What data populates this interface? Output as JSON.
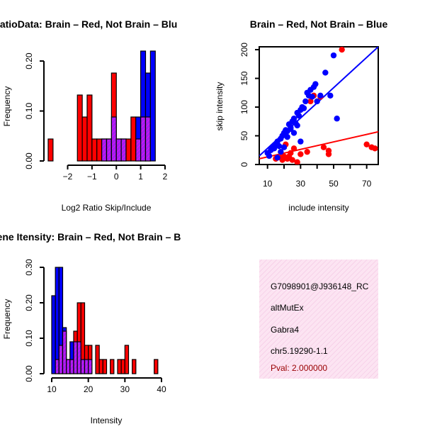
{
  "colors": {
    "brain": "#ff0000",
    "not_brain": "#0000ff",
    "overlap": "#a020f0",
    "panel_bg": "#fce4f2",
    "pval": "#990000"
  },
  "chart_data": [
    {
      "type": "bar",
      "title": "RatioData: Brain – Red, Not Brain – Blu",
      "xlabel": "Log2 Ratio Skip/Include",
      "ylabel": "Frequency",
      "xlim": [
        -2.8,
        2.0
      ],
      "ylim": [
        0,
        0.22
      ],
      "bin_width": 0.2,
      "x_ticks": [
        -2,
        -1,
        0,
        1,
        2
      ],
      "x_tick_labels": [
        "−2",
        "−1",
        "0",
        "1",
        "2"
      ],
      "y_ticks": [
        0.0,
        0.1,
        0.2
      ],
      "y_tick_labels": [
        "0.00",
        "0.10",
        "0.20"
      ],
      "bins_start": [
        -2.8,
        -2.6,
        -2.4,
        -2.2,
        -2.0,
        -1.8,
        -1.6,
        -1.4,
        -1.2,
        -1.0,
        -0.8,
        -0.6,
        -0.4,
        -0.2,
        0.0,
        0.2,
        0.4,
        0.6,
        0.8,
        1.0,
        1.2,
        1.4,
        1.6,
        1.8
      ],
      "series": [
        {
          "name": "Brain",
          "values": [
            0.044,
            0,
            0,
            0,
            0,
            0,
            0.132,
            0.088,
            0.132,
            0.044,
            0.044,
            0.044,
            0.044,
            0.176,
            0.044,
            0.044,
            0.044,
            0.088,
            0.044,
            0.088,
            0.088,
            0,
            0,
            0
          ]
        },
        {
          "name": "Not Brain",
          "values": [
            0,
            0,
            0,
            0,
            0,
            0,
            0,
            0,
            0,
            0,
            0,
            0.044,
            0.044,
            0.088,
            0.044,
            0.044,
            0,
            0,
            0.088,
            0.22,
            0.176,
            0.22,
            0,
            0
          ]
        }
      ]
    },
    {
      "type": "scatter",
      "title": "Brain – Red, Not Brain – Blue",
      "xlabel": "include intensity",
      "ylabel": "skip intensity",
      "xlim": [
        5,
        77
      ],
      "ylim": [
        0,
        205
      ],
      "x_ticks": [
        10,
        30,
        50,
        70
      ],
      "x_minor_ticks": [
        20,
        40,
        60
      ],
      "x_tick_labels": [
        "10",
        "30",
        "50",
        "70"
      ],
      "y_ticks": [
        0,
        50,
        100,
        150,
        200
      ],
      "y_tick_labels": [
        "0",
        "50",
        "100",
        "150",
        "200"
      ],
      "series": [
        {
          "name": "Brain",
          "x": [
            15,
            18,
            19,
            20,
            21,
            22,
            23,
            24,
            25,
            26,
            28,
            30,
            34,
            36,
            38,
            42,
            44,
            47,
            47,
            55,
            70,
            73,
            75
          ],
          "y": [
            10,
            12,
            8,
            14,
            35,
            10,
            14,
            20,
            8,
            28,
            4,
            18,
            22,
            110,
            120,
            118,
            30,
            24,
            18,
            200,
            35,
            30,
            28
          ]
        },
        {
          "name": "Not Brain",
          "x": [
            10,
            11,
            12,
            13,
            14,
            15,
            16,
            17,
            18,
            19,
            20,
            21,
            22,
            23,
            24,
            25,
            26,
            27,
            28,
            29,
            30,
            31,
            32,
            33,
            34,
            35,
            36,
            37,
            38,
            39,
            40,
            42,
            45,
            48,
            50,
            52,
            20,
            22,
            24,
            26,
            28,
            30,
            18,
            16
          ],
          "y": [
            20,
            15,
            25,
            30,
            28,
            35,
            40,
            32,
            45,
            50,
            55,
            60,
            58,
            70,
            65,
            75,
            80,
            72,
            90,
            85,
            95,
            100,
            98,
            110,
            125,
            120,
            130,
            118,
            135,
            140,
            110,
            120,
            160,
            120,
            190,
            80,
            30,
            48,
            62,
            55,
            68,
            40,
            22,
            12
          ]
        }
      ],
      "fit_lines": [
        {
          "name": "Brain",
          "x": [
            5,
            77
          ],
          "y": [
            10,
            57
          ]
        },
        {
          "name": "Not Brain",
          "x": [
            5,
            77
          ],
          "y": [
            15,
            205
          ]
        }
      ]
    },
    {
      "type": "bar",
      "title": "Gene Itensity: Brain – Red, Not Brain – B",
      "xlabel": "Intensity",
      "ylabel": "Frequency",
      "xlim": [
        10,
        40
      ],
      "ylim": [
        0,
        0.31
      ],
      "bin_width": 1,
      "x_ticks": [
        10,
        20,
        30,
        40
      ],
      "x_tick_labels": [
        "10",
        "20",
        "30",
        "40"
      ],
      "y_ticks": [
        0.0,
        0.1,
        0.2,
        0.3
      ],
      "y_tick_labels": [
        "0.00",
        "0.10",
        "0.20",
        "0.30"
      ],
      "bins_start": [
        10,
        11,
        12,
        13,
        14,
        15,
        16,
        17,
        18,
        19,
        20,
        21,
        22,
        23,
        24,
        25,
        26,
        27,
        28,
        29,
        30,
        31,
        32,
        33,
        34,
        35,
        36,
        37,
        38,
        39
      ],
      "series": [
        {
          "name": "Brain",
          "values": [
            0,
            0.04,
            0.08,
            0.12,
            0.04,
            0.04,
            0.12,
            0.2,
            0.2,
            0.08,
            0.08,
            0,
            0.08,
            0.04,
            0.04,
            0,
            0.04,
            0,
            0.04,
            0.04,
            0.08,
            0,
            0.04,
            0,
            0,
            0,
            0,
            0,
            0.04,
            0
          ]
        },
        {
          "name": "Not Brain",
          "values": [
            0.22,
            0.3,
            0.3,
            0.13,
            0.04,
            0.09,
            0.09,
            0.09,
            0.04,
            0.04,
            0.04,
            0,
            0,
            0,
            0,
            0,
            0,
            0,
            0,
            0,
            0,
            0,
            0,
            0,
            0,
            0,
            0,
            0,
            0,
            0
          ]
        }
      ]
    }
  ],
  "info": {
    "id": "G7098901@J936148_RC",
    "event_type": "altMutEx",
    "gene": "Gabra4",
    "location": "chr5.19290-1.1",
    "pval": "Pval: 2.000000"
  }
}
